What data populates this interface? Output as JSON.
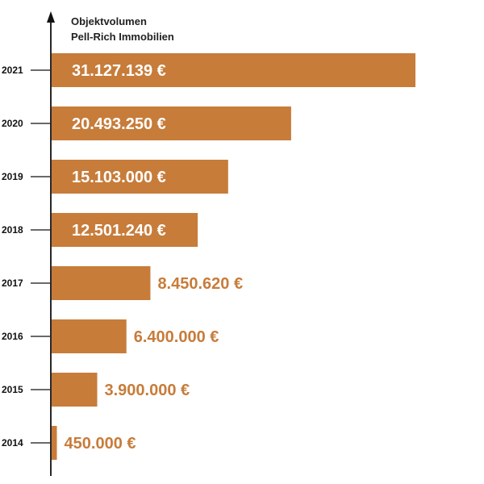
{
  "chart_data": {
    "type": "bar",
    "orientation": "horizontal",
    "title_lines": [
      "Objektvolumen",
      "Pell-Rich Immobilien"
    ],
    "categories": [
      "2021",
      "2020",
      "2019",
      "2018",
      "2017",
      "2016",
      "2015",
      "2014"
    ],
    "values": [
      31127139,
      20493250,
      15103000,
      12501240,
      8450620,
      6400000,
      3900000,
      450000
    ],
    "value_labels": [
      "31.127.139 €",
      "20.493.250 €",
      "15.103.000 €",
      "12.501.240 €",
      "8.450.620 €",
      "6.400.000 €",
      "3.900.000 €",
      "450.000 €"
    ],
    "bar_color": "#C77C3A",
    "label_color_inside": "#ffffff",
    "label_color_outside": "#C77C3A"
  }
}
